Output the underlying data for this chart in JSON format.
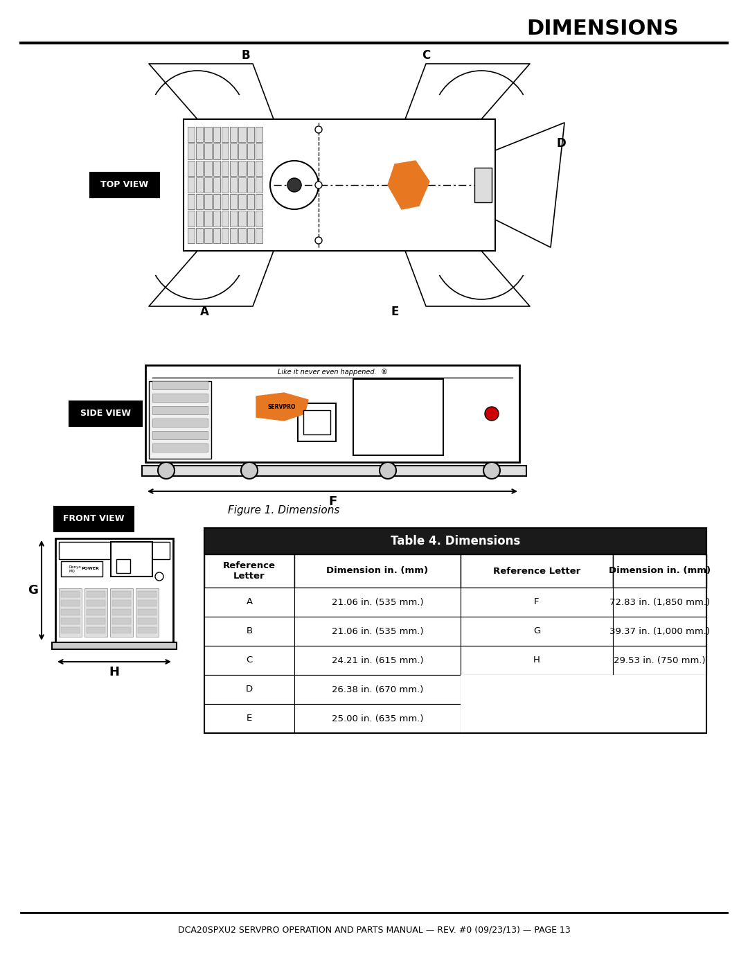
{
  "title": "DIMENSIONS",
  "page_bg": "#ffffff",
  "title_color": "#000000",
  "table_header_bg": "#1a1a1a",
  "table_header_fg": "#ffffff",
  "table_border": "#000000",
  "table_title": "Table 4. Dimensions",
  "col_headers": [
    "Reference\nLetter",
    "Dimension in. (mm)",
    "Reference Letter",
    "Dimension in. (mm)"
  ],
  "rows_left": [
    [
      "A",
      "21.06 in. (535 mm.)"
    ],
    [
      "B",
      "21.06 in. (535 mm.)"
    ],
    [
      "C",
      "24.21 in. (615 mm.)"
    ],
    [
      "D",
      "26.38 in. (670 mm.)"
    ],
    [
      "E",
      "25.00 in. (635 mm.)"
    ]
  ],
  "rows_right": [
    [
      "F",
      "72.83 in. (1,850 mm.)"
    ],
    [
      "G",
      "39.37 in. (1,000 mm.)"
    ],
    [
      "H",
      "29.53 in. (750 mm.)"
    ],
    [
      "",
      ""
    ],
    [
      "",
      ""
    ]
  ],
  "figure_caption": "Figure 1. Dimensions",
  "footer_text": "DCA20SPXU2 SERVPRO OPERATION AND PARTS MANUAL — REV. #0 (09/23/13) — PAGE 13",
  "top_view_label": "TOP VIEW",
  "side_view_label": "SIDE VIEW",
  "front_view_label": "FRONT VIEW",
  "orange_color": "#E87722",
  "label_bg": "#000000",
  "label_fg": "#ffffff"
}
